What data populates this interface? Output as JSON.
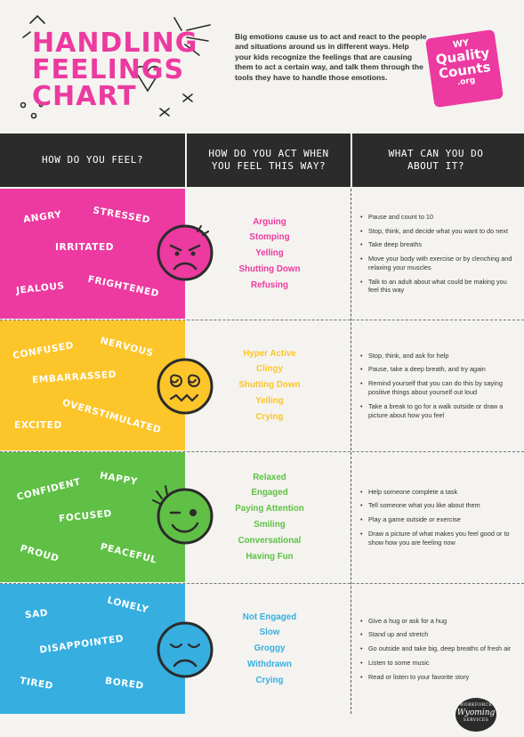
{
  "title": {
    "line1": "HANDLING",
    "line2": "FEELINGS",
    "line3": "CHART"
  },
  "intro": "Big emotions cause us to act and react to the people and situations around us in different ways. Help your kids recognize the feelings that are causing them to act a certain way, and talk them through the tools they have to handle those emotions.",
  "logo": {
    "l1": "WY",
    "l2": "Quality",
    "l3": "Counts",
    "l4": ".org"
  },
  "headers": {
    "feel": "HOW DO YOU FEEL?",
    "act": "HOW DO YOU ACT WHEN YOU FEEL THIS WAY?",
    "do": "WHAT CAN YOU DO ABOUT IT?"
  },
  "colors": {
    "pink": "#ec3aa0",
    "yellow": "#fcc52a",
    "green": "#5fc045",
    "blue": "#36aee0",
    "dark": "#2b2b2b"
  },
  "rows": [
    {
      "feelings": [
        "ANGRY",
        "STRESSED",
        "IRRITATED",
        "JEALOUS",
        "FRIGHTENED"
      ],
      "face": "angry-face-icon",
      "actions": [
        "Arguing",
        "Stomping",
        "Yelling",
        "Shutting Down",
        "Refusing"
      ],
      "tips": [
        "Pause and count to 10",
        "Stop, think, and decide what you want to do next",
        "Take deep breaths",
        "Move your body with exercise or by clenching and relaxing your muscles",
        "Talk to an adult about what could be making you feel this way"
      ]
    },
    {
      "feelings": [
        "CONFUSED",
        "NERVOUS",
        "EMBARRASSED",
        "OVERSTIMULATED",
        "EXCITED"
      ],
      "face": "dizzy-face-icon",
      "actions": [
        "Hyper Active",
        "Clingy",
        "Shutting Down",
        "Yelling",
        "Crying"
      ],
      "tips": [
        "Stop, think, and ask for help",
        "Pause, take a deep breath, and try again",
        "Remind yourself that you can do this by saying positive things about yourself out loud",
        "Take a break to go for a walk outside or draw a picture about how you feel"
      ]
    },
    {
      "feelings": [
        "CONFIDENT",
        "HAPPY",
        "FOCUSED",
        "PROUD",
        "PEACEFUL"
      ],
      "face": "winking-face-icon",
      "actions": [
        "Relaxed",
        "Engaged",
        "Paying Attention",
        "Smiling",
        "Conversational",
        "Having Fun"
      ],
      "tips": [
        "Help someone complete a task",
        "Tell someone what you like about them",
        "Play a game outside or exercise",
        "Draw a picture of what makes you feel good or to show how you are feeling now"
      ]
    },
    {
      "feelings": [
        "SAD",
        "LONELY",
        "DISAPPOINTED",
        "TIRED",
        "BORED"
      ],
      "face": "sad-face-icon",
      "actions": [
        "Not Engaged",
        "Slow",
        "Groggy",
        "Withdrawn",
        "Crying"
      ],
      "tips": [
        "Give a hug or ask for a hug",
        "Stand up and stretch",
        "Go outside and take big, deep breaths of fresh air",
        "Listen to some music",
        "Read or listen to  your favorite story"
      ]
    }
  ],
  "badge": {
    "b1": "WORKFORCE",
    "b2": "Wyoming",
    "b3": "SERVICES"
  }
}
